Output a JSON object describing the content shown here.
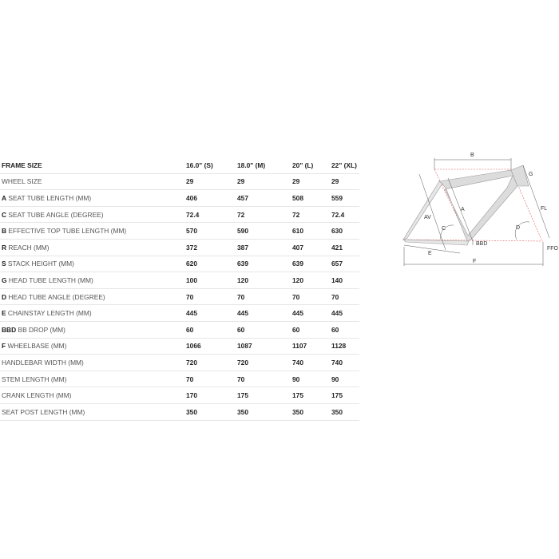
{
  "table": {
    "header": {
      "label": "FRAME SIZE",
      "sizes": [
        "16.0\" (S)",
        "18.0\" (M)",
        "20\" (L)",
        "22\" (XL)"
      ]
    },
    "rows": [
      {
        "code": "",
        "label": "WHEEL SIZE",
        "values": [
          "29",
          "29",
          "29",
          "29"
        ]
      },
      {
        "code": "A",
        "label": " SEAT TUBE LENGTH (MM)",
        "values": [
          "406",
          "457",
          "508",
          "559"
        ]
      },
      {
        "code": "C",
        "label": " SEAT TUBE ANGLE (DEGREE)",
        "values": [
          "72.4",
          "72",
          "72",
          "72.4"
        ]
      },
      {
        "code": "B",
        "label": " EFFECTIVE TOP TUBE LENGTH (MM)",
        "values": [
          "570",
          "590",
          "610",
          "630"
        ]
      },
      {
        "code": "R",
        "label": " REACH (MM)",
        "values": [
          "372",
          "387",
          "407",
          "421"
        ]
      },
      {
        "code": "S",
        "label": " STACK HEIGHT (MM)",
        "values": [
          "620",
          "639",
          "639",
          "657"
        ]
      },
      {
        "code": "G",
        "label": " HEAD TUBE LENGTH (MM)",
        "values": [
          "100",
          "120",
          "120",
          "140"
        ]
      },
      {
        "code": "D",
        "label": " HEAD TUBE ANGLE (DEGREE)",
        "values": [
          "70",
          "70",
          "70",
          "70"
        ]
      },
      {
        "code": "E",
        "label": " CHAINSTAY LENGTH (MM)",
        "values": [
          "445",
          "445",
          "445",
          "445"
        ]
      },
      {
        "code": "BBD",
        "label": " BB DROP (MM)",
        "values": [
          "60",
          "60",
          "60",
          "60"
        ]
      },
      {
        "code": "F",
        "label": " WHEELBASE (MM)",
        "values": [
          "1066",
          "1087",
          "1107",
          "1128"
        ]
      },
      {
        "code": "",
        "label": "HANDLEBAR WIDTH (MM)",
        "values": [
          "720",
          "720",
          "740",
          "740"
        ]
      },
      {
        "code": "",
        "label": "STEM LENGTH (MM)",
        "values": [
          "70",
          "70",
          "90",
          "90"
        ]
      },
      {
        "code": "",
        "label": "CRANK LENGTH (MM)",
        "values": [
          "170",
          "175",
          "175",
          "175"
        ]
      },
      {
        "code": "",
        "label": "SEAT POST LENGTH (MM)",
        "values": [
          "350",
          "350",
          "350",
          "350"
        ]
      }
    ]
  },
  "diagram": {
    "labels": {
      "B": "B",
      "G": "G",
      "A": "A",
      "AV": "AV",
      "FL": "FL",
      "C": "C",
      "D": "D",
      "BBD": "BBD",
      "FFO": "FFO",
      "E": "E",
      "F": "F"
    },
    "accent_color": "#e05a5a",
    "frame_color": "#dcdcdc"
  }
}
